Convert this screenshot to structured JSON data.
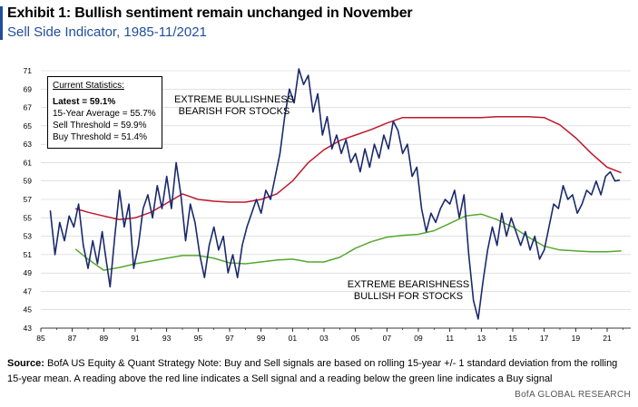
{
  "header": {
    "title": "Exhibit 1: Bullish sentiment remain unchanged in November",
    "subtitle": "Sell Side Indicator, 1985-11/2021"
  },
  "stats_box": {
    "heading": "Current Statistics:",
    "latest": "Latest = 59.1%",
    "avg": "15-Year Average = 55.7%",
    "sell": "Sell Threshold = 59.9%",
    "buy": "Buy Threshold = 51.4%"
  },
  "annotations": {
    "bull_1": "EXTREME BULLISHNESS",
    "bull_2": "BEARISH FOR STOCKS",
    "bear_1": "EXTREME BEARISHNESS",
    "bear_2": "BULLISH FOR STOCKS"
  },
  "footer": {
    "source_label": "Source:",
    "source_text": "BofA US Equity  & Quant Strategy Note: Buy and Sell signals are based on rolling 15-year +/- 1 standard deviation from the rolling 15-year mean. A reading above the red line indicates a Sell signal and a reading below the green line indicates a Buy signal",
    "brand": "BofA GLOBAL RESEARCH"
  },
  "colors": {
    "indicator": "#1a2a6c",
    "sell": "#c0182d",
    "buy": "#55a82f",
    "grid": "#cfcfcf",
    "axis": "#000000"
  },
  "chart_data": {
    "type": "line",
    "xlim": [
      1985,
      2022.5
    ],
    "ylim": [
      43,
      71
    ],
    "x_ticks": [
      "85",
      "87",
      "89",
      "91",
      "93",
      "95",
      "97",
      "99",
      "01",
      "03",
      "05",
      "07",
      "09",
      "11",
      "13",
      "15",
      "17",
      "19",
      "21"
    ],
    "y_ticks": [
      "43",
      "45",
      "47",
      "49",
      "51",
      "53",
      "55",
      "57",
      "59",
      "61",
      "63",
      "65",
      "67",
      "69",
      "71"
    ],
    "series": [
      {
        "key": "indicator",
        "x": [
          1985.6,
          1985.9,
          1986.2,
          1986.5,
          1986.8,
          1987.1,
          1987.4,
          1987.7,
          1988.0,
          1988.3,
          1988.6,
          1988.9,
          1989.1,
          1989.4,
          1989.7,
          1990.0,
          1990.3,
          1990.6,
          1990.9,
          1991.2,
          1991.5,
          1991.8,
          1992.1,
          1992.4,
          1992.7,
          1993.0,
          1993.3,
          1993.6,
          1993.9,
          1994.2,
          1994.5,
          1994.8,
          1995.1,
          1995.4,
          1995.7,
          1996.0,
          1996.3,
          1996.6,
          1996.9,
          1997.2,
          1997.5,
          1997.8,
          1998.1,
          1998.4,
          1998.7,
          1999.0,
          1999.3,
          1999.6,
          1999.9,
          2000.2,
          2000.5,
          2000.8,
          2001.1,
          2001.4,
          2001.7,
          2002.0,
          2002.3,
          2002.6,
          2002.9,
          2003.2,
          2003.5,
          2003.8,
          2004.1,
          2004.4,
          2004.7,
          2005.0,
          2005.3,
          2005.6,
          2005.9,
          2006.2,
          2006.5,
          2006.8,
          2007.1,
          2007.4,
          2007.7,
          2008.0,
          2008.3,
          2008.6,
          2008.9,
          2009.2,
          2009.5,
          2009.8,
          2010.1,
          2010.4,
          2010.7,
          2011.0,
          2011.3,
          2011.6,
          2011.9,
          2012.2,
          2012.5,
          2012.8,
          2013.1,
          2013.4,
          2013.7,
          2014.0,
          2014.3,
          2014.6,
          2014.9,
          2015.2,
          2015.5,
          2015.8,
          2016.1,
          2016.4,
          2016.7,
          2017.0,
          2017.3,
          2017.6,
          2017.9,
          2018.2,
          2018.5,
          2018.8,
          2019.1,
          2019.4,
          2019.7,
          2020.0,
          2020.3,
          2020.6,
          2020.9,
          2021.2,
          2021.5,
          2021.8
        ],
        "y": [
          55.8,
          51.0,
          54.5,
          52.5,
          55.2,
          54.0,
          56.5,
          52.0,
          49.5,
          52.5,
          50.0,
          53.5,
          51.0,
          47.5,
          53.0,
          58.0,
          54.0,
          56.5,
          49.5,
          52.0,
          56.0,
          57.5,
          55.0,
          58.5,
          56.0,
          59.5,
          56.0,
          61.0,
          57.5,
          52.5,
          56.5,
          54.5,
          51.0,
          48.5,
          52.0,
          54.0,
          51.5,
          53.0,
          49.0,
          51.0,
          48.5,
          52.0,
          54.0,
          55.5,
          57.0,
          55.5,
          58.0,
          57.0,
          59.5,
          62.0,
          66.0,
          69.0,
          67.5,
          71.2,
          69.5,
          70.5,
          66.5,
          68.5,
          64.0,
          66.0,
          62.5,
          64.0,
          62.0,
          63.5,
          61.0,
          62.0,
          60.0,
          62.5,
          60.5,
          63.0,
          61.5,
          64.0,
          62.5,
          65.5,
          64.5,
          62.0,
          63.0,
          59.5,
          60.5,
          56.0,
          53.5,
          55.5,
          54.5,
          56.0,
          57.0,
          56.5,
          58.0,
          55.0,
          57.5,
          51.0,
          46.0,
          44.0,
          48.0,
          51.5,
          54.0,
          52.0,
          55.5,
          53.0,
          55.0,
          53.5,
          52.0,
          53.5,
          51.5,
          53.0,
          50.5,
          51.5,
          54.0,
          56.5,
          56.0,
          58.5,
          57.0,
          57.5,
          55.5,
          56.5,
          58.0,
          57.5,
          59.0,
          57.5,
          59.5,
          60.0,
          59.0,
          59.1
        ]
      },
      {
        "key": "sell",
        "x": [
          1987.2,
          1988.0,
          1989.0,
          1990.0,
          1991.0,
          1992.0,
          1993.0,
          1994.0,
          1995.0,
          1996.0,
          1997.0,
          1998.0,
          1999.0,
          2000.0,
          2001.0,
          2002.0,
          2003.0,
          2004.0,
          2005.0,
          2006.0,
          2007.0,
          2008.0,
          2009.0,
          2010.0,
          2011.0,
          2012.0,
          2013.0,
          2014.0,
          2015.0,
          2016.0,
          2017.0,
          2018.0,
          2019.0,
          2020.0,
          2021.0,
          2021.9
        ],
        "y": [
          56.0,
          55.6,
          55.2,
          54.8,
          55.0,
          55.6,
          56.6,
          57.6,
          57.0,
          56.8,
          56.7,
          56.7,
          57.0,
          57.6,
          59.0,
          61.0,
          62.4,
          63.4,
          64.0,
          64.6,
          65.3,
          65.9,
          65.9,
          65.9,
          65.9,
          65.9,
          65.9,
          66.0,
          66.0,
          66.0,
          65.9,
          65.1,
          63.7,
          62.0,
          60.5,
          59.9
        ]
      },
      {
        "key": "buy",
        "x": [
          1987.2,
          1988.0,
          1989.0,
          1990.0,
          1991.0,
          1992.0,
          1993.0,
          1994.0,
          1995.0,
          1996.0,
          1997.0,
          1998.0,
          1999.0,
          2000.0,
          2001.0,
          2002.0,
          2003.0,
          2004.0,
          2005.0,
          2006.0,
          2007.0,
          2008.0,
          2009.0,
          2010.0,
          2011.0,
          2012.0,
          2013.0,
          2014.0,
          2015.0,
          2016.0,
          2017.0,
          2018.0,
          2019.0,
          2020.0,
          2021.0,
          2021.9
        ],
        "y": [
          51.6,
          50.5,
          49.3,
          49.6,
          50.0,
          50.3,
          50.6,
          50.9,
          50.9,
          50.6,
          50.1,
          50.0,
          50.2,
          50.4,
          50.5,
          50.2,
          50.2,
          50.7,
          51.7,
          52.4,
          52.9,
          53.1,
          53.2,
          53.6,
          54.4,
          55.2,
          55.4,
          54.8,
          54.0,
          52.9,
          51.9,
          51.5,
          51.4,
          51.3,
          51.3,
          51.4
        ]
      }
    ]
  }
}
